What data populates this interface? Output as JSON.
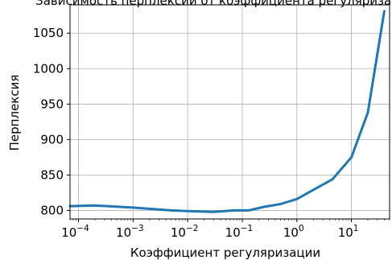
{
  "chart_data": {
    "type": "line",
    "title": "Зависимость перплексии от коэффициента регуляризации",
    "xlabel": "Коэффициент регуляризации",
    "ylabel": "Перплексия",
    "x_scale": "log",
    "xlim": [
      7e-05,
      50
    ],
    "ylim": [
      788,
      1090
    ],
    "grid": true,
    "legend": "none",
    "line_color": "#1f77b4",
    "x_ticks": [
      0.0001,
      0.001,
      0.01,
      0.1,
      1,
      10
    ],
    "x_tick_labels": [
      {
        "base": "10",
        "exp": "−4"
      },
      {
        "base": "10",
        "exp": "−3"
      },
      {
        "base": "10",
        "exp": "−2"
      },
      {
        "base": "10",
        "exp": "−1"
      },
      {
        "base": "10",
        "exp": "0"
      },
      {
        "base": "10",
        "exp": "1"
      }
    ],
    "y_ticks": [
      800,
      850,
      900,
      950,
      1000,
      1050
    ],
    "y_tick_labels": [
      "800",
      "850",
      "900",
      "950",
      "1000",
      "1050"
    ],
    "series": [
      {
        "x": [
          7e-05,
          0.0002,
          0.001,
          0.005,
          0.01,
          0.03,
          0.07,
          0.13,
          0.25,
          0.5,
          1,
          2,
          4.5,
          10,
          20,
          40
        ],
        "y": [
          806,
          807,
          804,
          800,
          799,
          798,
          800,
          800,
          805,
          809,
          816,
          829,
          844,
          875,
          938,
          1081
        ]
      }
    ]
  }
}
